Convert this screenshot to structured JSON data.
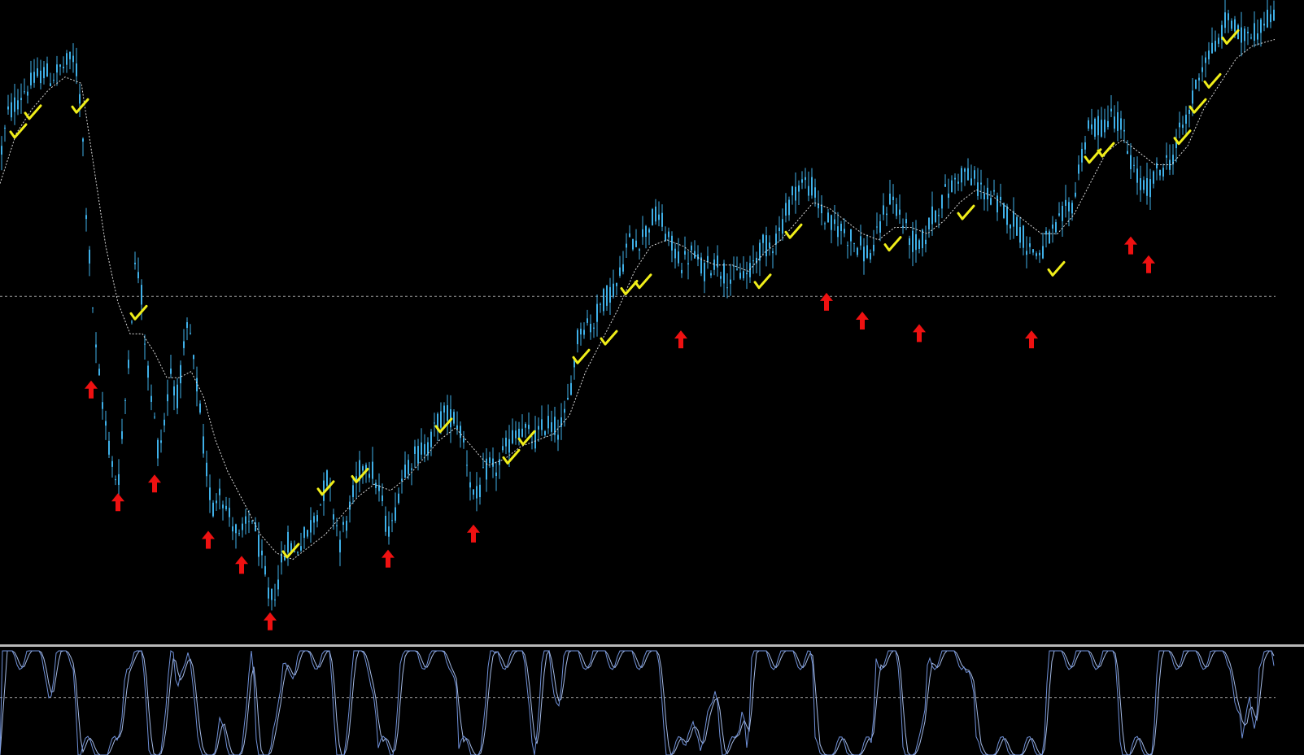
{
  "chart_data": {
    "type": "candlestick",
    "title": "",
    "xlabel": "",
    "ylabel": "",
    "grid": false,
    "price_panel": {
      "ylim": [
        0,
        100
      ],
      "reference_level": 54,
      "series": [
        {
          "x": 0,
          "y": 76
        },
        {
          "x": 10,
          "y": 83
        },
        {
          "x": 20,
          "y": 85
        },
        {
          "x": 30,
          "y": 87
        },
        {
          "x": 40,
          "y": 88
        },
        {
          "x": 52,
          "y": 90
        },
        {
          "x": 62,
          "y": 89
        },
        {
          "x": 72,
          "y": 90
        },
        {
          "x": 82,
          "y": 91
        },
        {
          "x": 92,
          "y": 92
        },
        {
          "x": 100,
          "y": 84
        },
        {
          "x": 105,
          "y": 70
        },
        {
          "x": 110,
          "y": 60
        },
        {
          "x": 118,
          "y": 45
        },
        {
          "x": 128,
          "y": 35
        },
        {
          "x": 138,
          "y": 27
        },
        {
          "x": 145,
          "y": 24
        },
        {
          "x": 152,
          "y": 34
        },
        {
          "x": 160,
          "y": 48
        },
        {
          "x": 167,
          "y": 60
        },
        {
          "x": 173,
          "y": 56
        },
        {
          "x": 180,
          "y": 44
        },
        {
          "x": 188,
          "y": 36
        },
        {
          "x": 195,
          "y": 29
        },
        {
          "x": 202,
          "y": 34
        },
        {
          "x": 210,
          "y": 42
        },
        {
          "x": 218,
          "y": 38
        },
        {
          "x": 225,
          "y": 44
        },
        {
          "x": 232,
          "y": 50
        },
        {
          "x": 238,
          "y": 43
        },
        {
          "x": 244,
          "y": 38
        },
        {
          "x": 250,
          "y": 30
        },
        {
          "x": 256,
          "y": 24
        },
        {
          "x": 262,
          "y": 20
        },
        {
          "x": 270,
          "y": 24
        },
        {
          "x": 278,
          "y": 20
        },
        {
          "x": 286,
          "y": 18
        },
        {
          "x": 294,
          "y": 15
        },
        {
          "x": 302,
          "y": 17
        },
        {
          "x": 310,
          "y": 19
        },
        {
          "x": 318,
          "y": 14
        },
        {
          "x": 326,
          "y": 9
        },
        {
          "x": 332,
          "y": 5
        },
        {
          "x": 338,
          "y": 7
        },
        {
          "x": 346,
          "y": 11
        },
        {
          "x": 354,
          "y": 15
        },
        {
          "x": 362,
          "y": 13
        },
        {
          "x": 370,
          "y": 15
        },
        {
          "x": 378,
          "y": 16
        },
        {
          "x": 386,
          "y": 19
        },
        {
          "x": 394,
          "y": 21
        },
        {
          "x": 402,
          "y": 25
        },
        {
          "x": 410,
          "y": 20
        },
        {
          "x": 418,
          "y": 15
        },
        {
          "x": 426,
          "y": 18
        },
        {
          "x": 434,
          "y": 22
        },
        {
          "x": 442,
          "y": 26
        },
        {
          "x": 450,
          "y": 28
        },
        {
          "x": 458,
          "y": 26
        },
        {
          "x": 466,
          "y": 23
        },
        {
          "x": 474,
          "y": 18
        },
        {
          "x": 482,
          "y": 17
        },
        {
          "x": 490,
          "y": 23
        },
        {
          "x": 498,
          "y": 27
        },
        {
          "x": 506,
          "y": 28
        },
        {
          "x": 514,
          "y": 29
        },
        {
          "x": 522,
          "y": 30
        },
        {
          "x": 530,
          "y": 31
        },
        {
          "x": 538,
          "y": 34
        },
        {
          "x": 546,
          "y": 35
        },
        {
          "x": 554,
          "y": 35
        },
        {
          "x": 562,
          "y": 34
        },
        {
          "x": 570,
          "y": 31
        },
        {
          "x": 578,
          "y": 25
        },
        {
          "x": 584,
          "y": 21
        },
        {
          "x": 592,
          "y": 24
        },
        {
          "x": 600,
          "y": 27
        },
        {
          "x": 608,
          "y": 26
        },
        {
          "x": 616,
          "y": 28
        },
        {
          "x": 624,
          "y": 30
        },
        {
          "x": 632,
          "y": 32
        },
        {
          "x": 640,
          "y": 33
        },
        {
          "x": 648,
          "y": 32
        },
        {
          "x": 656,
          "y": 31
        },
        {
          "x": 664,
          "y": 32
        },
        {
          "x": 672,
          "y": 34
        },
        {
          "x": 680,
          "y": 33
        },
        {
          "x": 688,
          "y": 33
        },
        {
          "x": 696,
          "y": 35
        },
        {
          "x": 704,
          "y": 42
        },
        {
          "x": 712,
          "y": 49
        },
        {
          "x": 720,
          "y": 50
        },
        {
          "x": 728,
          "y": 49
        },
        {
          "x": 736,
          "y": 52
        },
        {
          "x": 744,
          "y": 54
        },
        {
          "x": 752,
          "y": 55
        },
        {
          "x": 760,
          "y": 56
        },
        {
          "x": 768,
          "y": 61
        },
        {
          "x": 776,
          "y": 63
        },
        {
          "x": 784,
          "y": 63
        },
        {
          "x": 792,
          "y": 64
        },
        {
          "x": 800,
          "y": 66
        },
        {
          "x": 808,
          "y": 67
        },
        {
          "x": 816,
          "y": 65
        },
        {
          "x": 824,
          "y": 62
        },
        {
          "x": 832,
          "y": 61
        },
        {
          "x": 840,
          "y": 59
        },
        {
          "x": 848,
          "y": 61
        },
        {
          "x": 856,
          "y": 60
        },
        {
          "x": 864,
          "y": 58
        },
        {
          "x": 872,
          "y": 59
        },
        {
          "x": 880,
          "y": 60
        },
        {
          "x": 888,
          "y": 58
        },
        {
          "x": 896,
          "y": 57
        },
        {
          "x": 904,
          "y": 57
        },
        {
          "x": 912,
          "y": 58
        },
        {
          "x": 920,
          "y": 57
        },
        {
          "x": 928,
          "y": 60
        },
        {
          "x": 936,
          "y": 62
        },
        {
          "x": 944,
          "y": 62
        },
        {
          "x": 952,
          "y": 63
        },
        {
          "x": 960,
          "y": 65
        },
        {
          "x": 968,
          "y": 68
        },
        {
          "x": 976,
          "y": 71
        },
        {
          "x": 984,
          "y": 72
        },
        {
          "x": 992,
          "y": 72
        },
        {
          "x": 1000,
          "y": 71
        },
        {
          "x": 1008,
          "y": 68
        },
        {
          "x": 1016,
          "y": 66
        },
        {
          "x": 1024,
          "y": 65
        },
        {
          "x": 1032,
          "y": 65
        },
        {
          "x": 1040,
          "y": 64
        },
        {
          "x": 1048,
          "y": 63
        },
        {
          "x": 1056,
          "y": 62
        },
        {
          "x": 1064,
          "y": 61
        },
        {
          "x": 1072,
          "y": 61
        },
        {
          "x": 1080,
          "y": 64
        },
        {
          "x": 1088,
          "y": 68
        },
        {
          "x": 1096,
          "y": 70
        },
        {
          "x": 1104,
          "y": 68
        },
        {
          "x": 1112,
          "y": 65
        },
        {
          "x": 1120,
          "y": 63
        },
        {
          "x": 1128,
          "y": 62
        },
        {
          "x": 1136,
          "y": 63
        },
        {
          "x": 1144,
          "y": 66
        },
        {
          "x": 1152,
          "y": 68
        },
        {
          "x": 1160,
          "y": 70
        },
        {
          "x": 1168,
          "y": 71
        },
        {
          "x": 1176,
          "y": 73
        },
        {
          "x": 1184,
          "y": 74
        },
        {
          "x": 1192,
          "y": 73
        },
        {
          "x": 1200,
          "y": 72
        },
        {
          "x": 1208,
          "y": 71
        },
        {
          "x": 1216,
          "y": 70
        },
        {
          "x": 1224,
          "y": 69
        },
        {
          "x": 1232,
          "y": 68
        },
        {
          "x": 1240,
          "y": 67
        },
        {
          "x": 1248,
          "y": 66
        },
        {
          "x": 1256,
          "y": 64
        },
        {
          "x": 1264,
          "y": 62
        },
        {
          "x": 1272,
          "y": 61
        },
        {
          "x": 1280,
          "y": 61
        },
        {
          "x": 1288,
          "y": 63
        },
        {
          "x": 1296,
          "y": 64
        },
        {
          "x": 1304,
          "y": 66
        },
        {
          "x": 1312,
          "y": 68
        },
        {
          "x": 1320,
          "y": 69
        },
        {
          "x": 1328,
          "y": 76
        },
        {
          "x": 1336,
          "y": 80
        },
        {
          "x": 1344,
          "y": 81
        },
        {
          "x": 1352,
          "y": 81
        },
        {
          "x": 1360,
          "y": 82
        },
        {
          "x": 1368,
          "y": 83
        },
        {
          "x": 1376,
          "y": 82
        },
        {
          "x": 1384,
          "y": 78
        },
        {
          "x": 1392,
          "y": 75
        },
        {
          "x": 1400,
          "y": 72
        },
        {
          "x": 1408,
          "y": 71
        },
        {
          "x": 1416,
          "y": 72
        },
        {
          "x": 1424,
          "y": 74
        },
        {
          "x": 1432,
          "y": 75
        },
        {
          "x": 1440,
          "y": 76
        },
        {
          "x": 1448,
          "y": 79
        },
        {
          "x": 1456,
          "y": 82
        },
        {
          "x": 1464,
          "y": 84
        },
        {
          "x": 1472,
          "y": 89
        },
        {
          "x": 1480,
          "y": 92
        },
        {
          "x": 1488,
          "y": 93
        },
        {
          "x": 1496,
          "y": 94
        },
        {
          "x": 1504,
          "y": 97
        },
        {
          "x": 1512,
          "y": 99
        },
        {
          "x": 1520,
          "y": 96
        },
        {
          "x": 1528,
          "y": 95
        },
        {
          "x": 1536,
          "y": 97
        },
        {
          "x": 1544,
          "y": 96
        },
        {
          "x": 1552,
          "y": 98
        },
        {
          "x": 1560,
          "y": 99
        },
        {
          "x": 1567,
          "y": 98
        }
      ],
      "moving_average": [
        {
          "x": 0,
          "y": 72
        },
        {
          "x": 20,
          "y": 80
        },
        {
          "x": 40,
          "y": 84
        },
        {
          "x": 60,
          "y": 87
        },
        {
          "x": 80,
          "y": 89
        },
        {
          "x": 100,
          "y": 88
        },
        {
          "x": 115,
          "y": 75
        },
        {
          "x": 130,
          "y": 62
        },
        {
          "x": 145,
          "y": 53
        },
        {
          "x": 160,
          "y": 48
        },
        {
          "x": 175,
          "y": 48
        },
        {
          "x": 190,
          "y": 45
        },
        {
          "x": 205,
          "y": 41
        },
        {
          "x": 220,
          "y": 41
        },
        {
          "x": 235,
          "y": 42
        },
        {
          "x": 250,
          "y": 38
        },
        {
          "x": 265,
          "y": 31
        },
        {
          "x": 280,
          "y": 26
        },
        {
          "x": 300,
          "y": 21
        },
        {
          "x": 320,
          "y": 16
        },
        {
          "x": 340,
          "y": 13
        },
        {
          "x": 360,
          "y": 12
        },
        {
          "x": 380,
          "y": 14
        },
        {
          "x": 400,
          "y": 16
        },
        {
          "x": 420,
          "y": 19
        },
        {
          "x": 440,
          "y": 22
        },
        {
          "x": 460,
          "y": 24
        },
        {
          "x": 480,
          "y": 23
        },
        {
          "x": 500,
          "y": 25
        },
        {
          "x": 520,
          "y": 28
        },
        {
          "x": 540,
          "y": 31
        },
        {
          "x": 560,
          "y": 33
        },
        {
          "x": 580,
          "y": 30
        },
        {
          "x": 600,
          "y": 27
        },
        {
          "x": 620,
          "y": 28
        },
        {
          "x": 640,
          "y": 30
        },
        {
          "x": 660,
          "y": 31
        },
        {
          "x": 680,
          "y": 32
        },
        {
          "x": 700,
          "y": 35
        },
        {
          "x": 720,
          "y": 42
        },
        {
          "x": 740,
          "y": 47
        },
        {
          "x": 760,
          "y": 52
        },
        {
          "x": 780,
          "y": 58
        },
        {
          "x": 800,
          "y": 62
        },
        {
          "x": 820,
          "y": 63
        },
        {
          "x": 840,
          "y": 62
        },
        {
          "x": 860,
          "y": 60
        },
        {
          "x": 880,
          "y": 59
        },
        {
          "x": 900,
          "y": 59
        },
        {
          "x": 920,
          "y": 58
        },
        {
          "x": 940,
          "y": 61
        },
        {
          "x": 960,
          "y": 63
        },
        {
          "x": 980,
          "y": 66
        },
        {
          "x": 1000,
          "y": 69
        },
        {
          "x": 1020,
          "y": 68
        },
        {
          "x": 1040,
          "y": 66
        },
        {
          "x": 1060,
          "y": 64
        },
        {
          "x": 1080,
          "y": 63
        },
        {
          "x": 1100,
          "y": 65
        },
        {
          "x": 1120,
          "y": 65
        },
        {
          "x": 1140,
          "y": 64
        },
        {
          "x": 1160,
          "y": 66
        },
        {
          "x": 1180,
          "y": 69
        },
        {
          "x": 1200,
          "y": 71
        },
        {
          "x": 1220,
          "y": 70
        },
        {
          "x": 1240,
          "y": 68
        },
        {
          "x": 1260,
          "y": 66
        },
        {
          "x": 1280,
          "y": 64
        },
        {
          "x": 1300,
          "y": 64
        },
        {
          "x": 1320,
          "y": 67
        },
        {
          "x": 1340,
          "y": 72
        },
        {
          "x": 1360,
          "y": 77
        },
        {
          "x": 1380,
          "y": 79
        },
        {
          "x": 1400,
          "y": 77
        },
        {
          "x": 1420,
          "y": 75
        },
        {
          "x": 1440,
          "y": 75
        },
        {
          "x": 1460,
          "y": 78
        },
        {
          "x": 1480,
          "y": 84
        },
        {
          "x": 1500,
          "y": 88
        },
        {
          "x": 1520,
          "y": 92
        },
        {
          "x": 1540,
          "y": 94
        },
        {
          "x": 1567,
          "y": 95
        }
      ],
      "buy_markers": [
        {
          "x": 112,
          "y": 39
        },
        {
          "x": 145,
          "y": 21
        },
        {
          "x": 190,
          "y": 24
        },
        {
          "x": 256,
          "y": 15
        },
        {
          "x": 297,
          "y": 11
        },
        {
          "x": 332,
          "y": 2
        },
        {
          "x": 477,
          "y": 12
        },
        {
          "x": 582,
          "y": 16
        },
        {
          "x": 837,
          "y": 47
        },
        {
          "x": 1016,
          "y": 53
        },
        {
          "x": 1060,
          "y": 50
        },
        {
          "x": 1130,
          "y": 48
        },
        {
          "x": 1268,
          "y": 47
        },
        {
          "x": 1390,
          "y": 62
        },
        {
          "x": 1412,
          "y": 59
        }
      ],
      "sell_markers": [
        {
          "x": 22,
          "y": 80
        },
        {
          "x": 40,
          "y": 83
        },
        {
          "x": 98,
          "y": 84
        },
        {
          "x": 170,
          "y": 51
        },
        {
          "x": 357,
          "y": 13
        },
        {
          "x": 400,
          "y": 23
        },
        {
          "x": 442,
          "y": 25
        },
        {
          "x": 545,
          "y": 33
        },
        {
          "x": 628,
          "y": 28
        },
        {
          "x": 647,
          "y": 31
        },
        {
          "x": 714,
          "y": 44
        },
        {
          "x": 748,
          "y": 47
        },
        {
          "x": 773,
          "y": 55
        },
        {
          "x": 790,
          "y": 56
        },
        {
          "x": 937,
          "y": 56
        },
        {
          "x": 975,
          "y": 64
        },
        {
          "x": 1097,
          "y": 62
        },
        {
          "x": 1187,
          "y": 67
        },
        {
          "x": 1298,
          "y": 58
        },
        {
          "x": 1343,
          "y": 76
        },
        {
          "x": 1359,
          "y": 77
        },
        {
          "x": 1453,
          "y": 79
        },
        {
          "x": 1472,
          "y": 84
        },
        {
          "x": 1490,
          "y": 88
        },
        {
          "x": 1512,
          "y": 95
        }
      ]
    },
    "oscillator_panel": {
      "ylim": [
        0,
        100
      ],
      "reference_level": 55
    },
    "colors": {
      "background": "#000000",
      "candle": "#3fb0e8",
      "moving_average": "#d8d8d8",
      "reference_line": "#9a9a9a",
      "panel_separator": "#b8b8b8",
      "buy_arrow": "#ee1111",
      "sell_check": "#f0ee19",
      "oscillator_main": "#6f90d8",
      "oscillator_signal": "#a5bbe6"
    }
  }
}
